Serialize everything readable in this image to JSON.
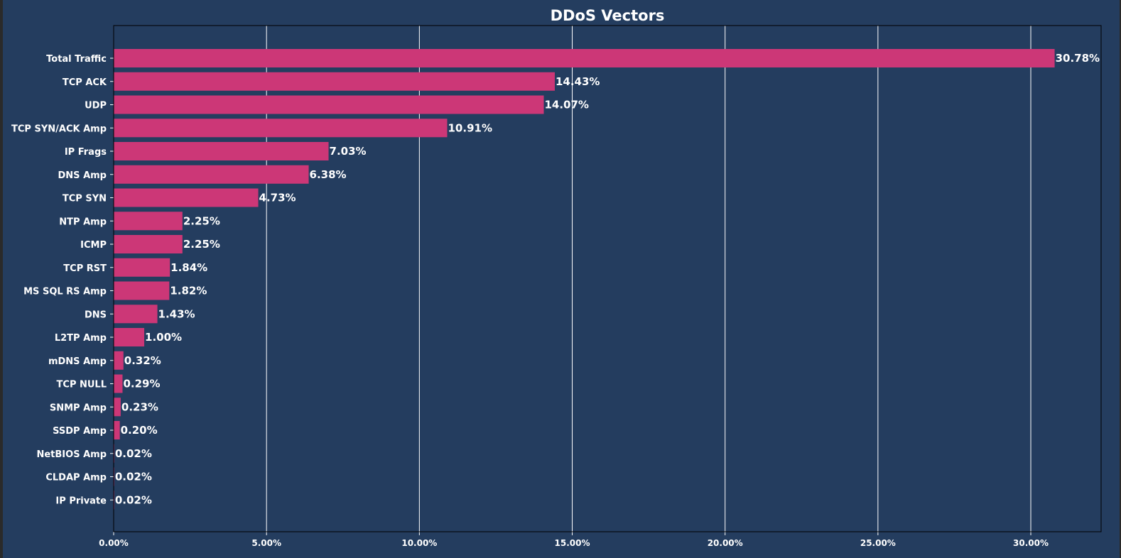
{
  "chart_data": {
    "type": "bar",
    "orientation": "horizontal",
    "title": "DDoS Vectors",
    "xlabel": "",
    "ylabel": "",
    "xlim": [
      0,
      32.3
    ],
    "x_ticks": [
      0,
      5,
      10,
      15,
      20,
      25,
      30
    ],
    "x_tick_labels": [
      "0.00%",
      "5.00%",
      "10.00%",
      "15.00%",
      "20.00%",
      "25.00%",
      "30.00%"
    ],
    "grid": "vertical",
    "categories": [
      "Total Traffic",
      "TCP ACK",
      "UDP",
      "TCP SYN/ACK Amp",
      "IP Frags",
      "DNS Amp",
      "TCP SYN",
      "NTP Amp",
      "ICMP",
      "TCP RST",
      "MS SQL RS Amp",
      "DNS",
      "L2TP Amp",
      "mDNS Amp",
      "TCP NULL",
      "SNMP Amp",
      "SSDP Amp",
      "NetBIOS Amp",
      "CLDAP Amp",
      "IP Private"
    ],
    "values": [
      30.78,
      14.43,
      14.07,
      10.91,
      7.03,
      6.38,
      4.73,
      2.25,
      2.25,
      1.84,
      1.82,
      1.43,
      1.0,
      0.32,
      0.29,
      0.23,
      0.2,
      0.02,
      0.02,
      0.02
    ],
    "data_labels": [
      "30.78%",
      "14.43%",
      "14.07%",
      "10.91%",
      "7.03%",
      "6.38%",
      "4.73%",
      "2.25%",
      "2.25%",
      "1.84%",
      "1.82%",
      "1.43%",
      "1.00%",
      "0.32%",
      "0.29%",
      "0.23%",
      "0.20%",
      "0.02%",
      "0.02%",
      "0.02%"
    ],
    "bar_color": "#cc3777",
    "background_color": "#243d5f",
    "grid_color": "#ffffff",
    "text_color": "#ffffff"
  }
}
